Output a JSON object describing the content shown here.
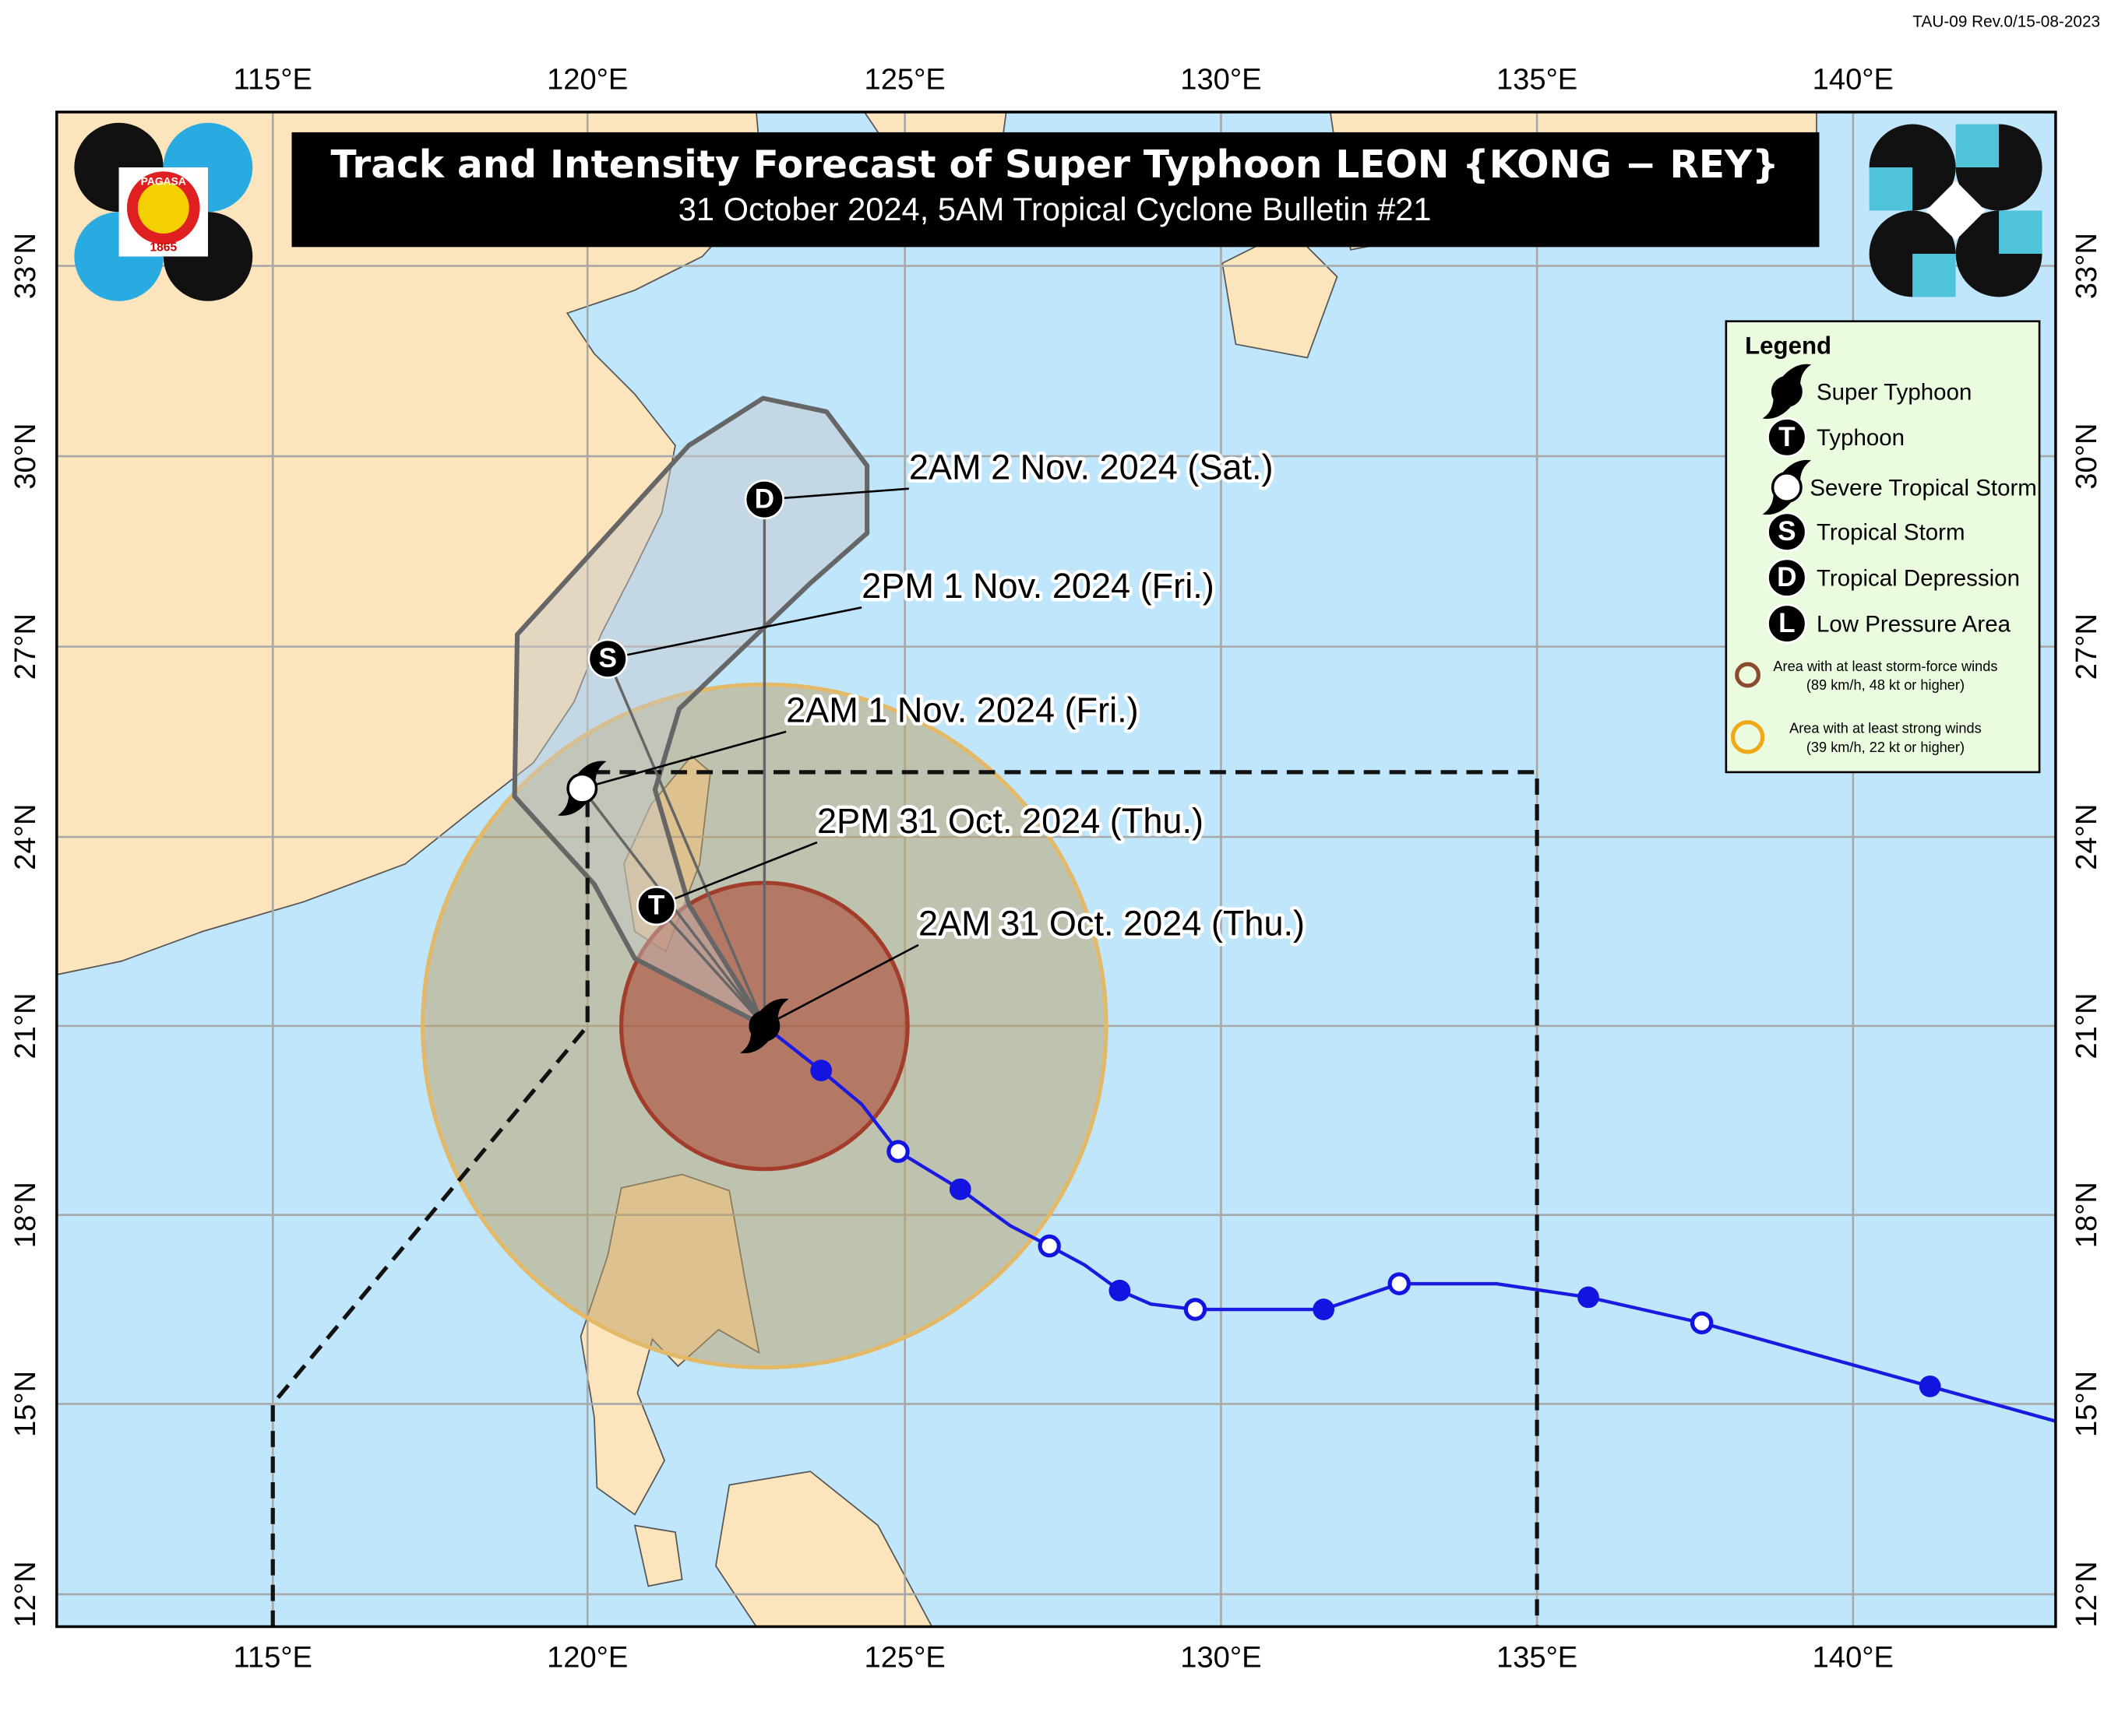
{
  "revision": "TAU-09 Rev.0/15-08-2023",
  "header": {
    "title": "Track and Intensity Forecast of Super Typhoon LEON {KONG − REY}",
    "subtitle": "31 October 2024, 5AM Tropical Cyclone Bulletin #21"
  },
  "logo": {
    "name": "PAGASA",
    "year": "1865"
  },
  "axes": {
    "longitude_labels": [
      "115°E",
      "120°E",
      "125°E",
      "130°E",
      "135°E",
      "140°E"
    ],
    "latitude_labels": [
      "33°N",
      "30°N",
      "27°N",
      "24°N",
      "21°N",
      "18°N",
      "15°N",
      "12°N"
    ]
  },
  "forecast": [
    {
      "time": "2AM 31 Oct. 2024 (Thu.)"
    },
    {
      "time": "2PM 31 Oct. 2024 (Thu.)",
      "symbol": "T"
    },
    {
      "time": "2AM 1 Nov. 2024 (Fri.)"
    },
    {
      "time": "2PM 1 Nov. 2024 (Fri.)",
      "symbol": "S"
    },
    {
      "time": "2AM 2 Nov. 2024 (Sat.)",
      "symbol": "D"
    }
  ],
  "legend": {
    "title": "Legend",
    "items": [
      {
        "label": "Super Typhoon"
      },
      {
        "symbol": "T",
        "label": "Typhoon"
      },
      {
        "label": "Severe Tropical Storm"
      },
      {
        "symbol": "S",
        "label": "Tropical Storm"
      },
      {
        "symbol": "D",
        "label": "Tropical Depression"
      },
      {
        "symbol": "L",
        "label": "Low Pressure Area"
      }
    ],
    "areas": [
      {
        "label": "Area with at least storm-force winds",
        "detail": "(89 km/h, 48 kt or higher)"
      },
      {
        "label": "Area with at least strong winds",
        "detail": "(39 km/h, 22 kt or higher)"
      }
    ]
  }
}
